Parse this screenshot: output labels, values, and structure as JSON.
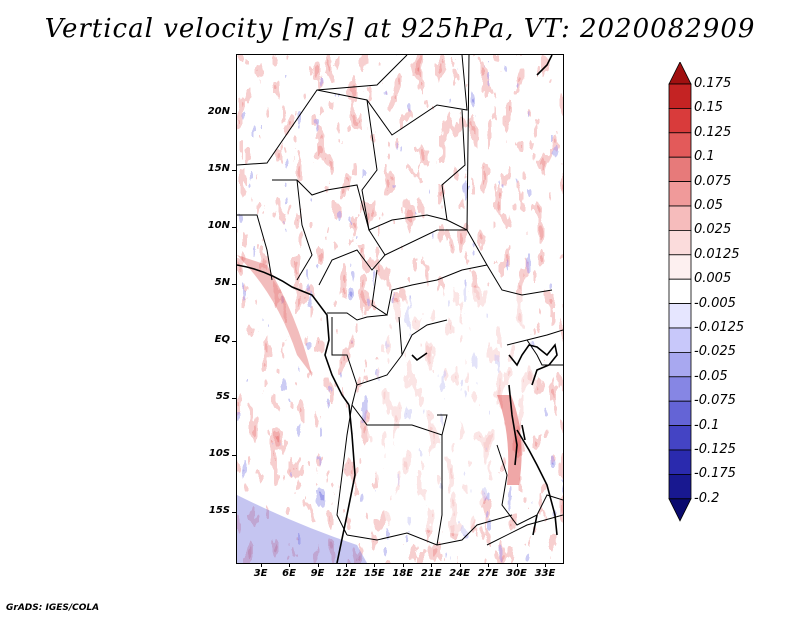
{
  "title": "Vertical velocity [m/s] at 925hPa, VT: 2020082909",
  "footer": "GrADS: IGES/COLA",
  "map": {
    "projection": "latlon",
    "lat_labels": [
      {
        "lat": 20,
        "label": "20N"
      },
      {
        "lat": 15,
        "label": "15N"
      },
      {
        "lat": 10,
        "label": "10N"
      },
      {
        "lat": 5,
        "label": "5N"
      },
      {
        "lat": 0,
        "label": "EQ"
      },
      {
        "lat": -5,
        "label": "5S"
      },
      {
        "lat": -10,
        "label": "10S"
      },
      {
        "lat": -15,
        "label": "15S"
      }
    ],
    "lon_labels": [
      {
        "lon": 3,
        "label": "3E"
      },
      {
        "lon": 6,
        "label": "6E"
      },
      {
        "lon": 9,
        "label": "9E"
      },
      {
        "lon": 12,
        "label": "12E"
      },
      {
        "lon": 15,
        "label": "15E"
      },
      {
        "lon": 18,
        "label": "18E"
      },
      {
        "lon": 21,
        "label": "21E"
      },
      {
        "lon": 24,
        "label": "24E"
      },
      {
        "lon": 27,
        "label": "27E"
      },
      {
        "lon": 30,
        "label": "30E"
      },
      {
        "lon": 33,
        "label": "33E"
      }
    ],
    "lon_range": [
      0.4,
      34.8
    ],
    "lat_range": [
      -19.4,
      25.2
    ]
  },
  "colorbar": {
    "levels": [
      "0.175",
      "0.15",
      "0.125",
      "0.1",
      "0.075",
      "0.05",
      "0.025",
      "0.0125",
      "0.005",
      "-0.005",
      "-0.0125",
      "-0.025",
      "-0.05",
      "-0.075",
      "-0.1",
      "-0.125",
      "-0.175",
      "-0.2"
    ],
    "colors": [
      "#a01010",
      "#c42323",
      "#d93b3b",
      "#e35a5a",
      "#e77a7a",
      "#f09a9a",
      "#f6bcbc",
      "#fbdcdc",
      "#fdf0f0",
      "#ffffff",
      "#e6e6ff",
      "#c8c8fa",
      "#a8a8f0",
      "#8686e4",
      "#6464d6",
      "#4444c4",
      "#2a2aae",
      "#181890",
      "#0a0a6e"
    ]
  }
}
